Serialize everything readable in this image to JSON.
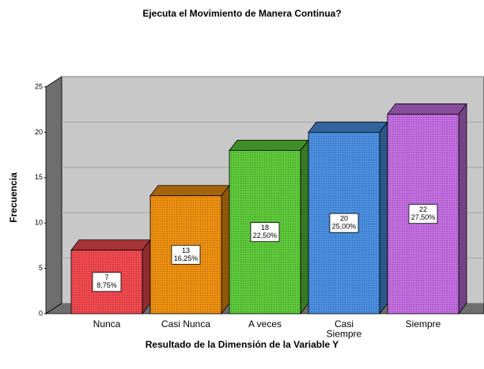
{
  "chart_data": {
    "type": "bar3d",
    "title": "Ejecuta el Movimiento de Manera Continua?",
    "x_label": "Resultado de la Dimensión de la Variable Y",
    "y_label": "Frecuencia",
    "categories": [
      "Nunca",
      "Casi Nunca",
      "A veces",
      "Casi\nSiempre",
      "Siempre"
    ],
    "values": [
      7,
      13,
      18,
      20,
      22
    ],
    "percent_labels": [
      "8,75%",
      "16,25%",
      "22,50%",
      "25,00%",
      "27,50%"
    ],
    "colors": [
      "#f0494f",
      "#ee9010",
      "#5dc93b",
      "#4a8fe0",
      "#c26ee0"
    ],
    "ylim": [
      0,
      25
    ],
    "yticks": [
      0,
      5,
      10,
      15,
      20,
      25
    ],
    "grid": true
  }
}
